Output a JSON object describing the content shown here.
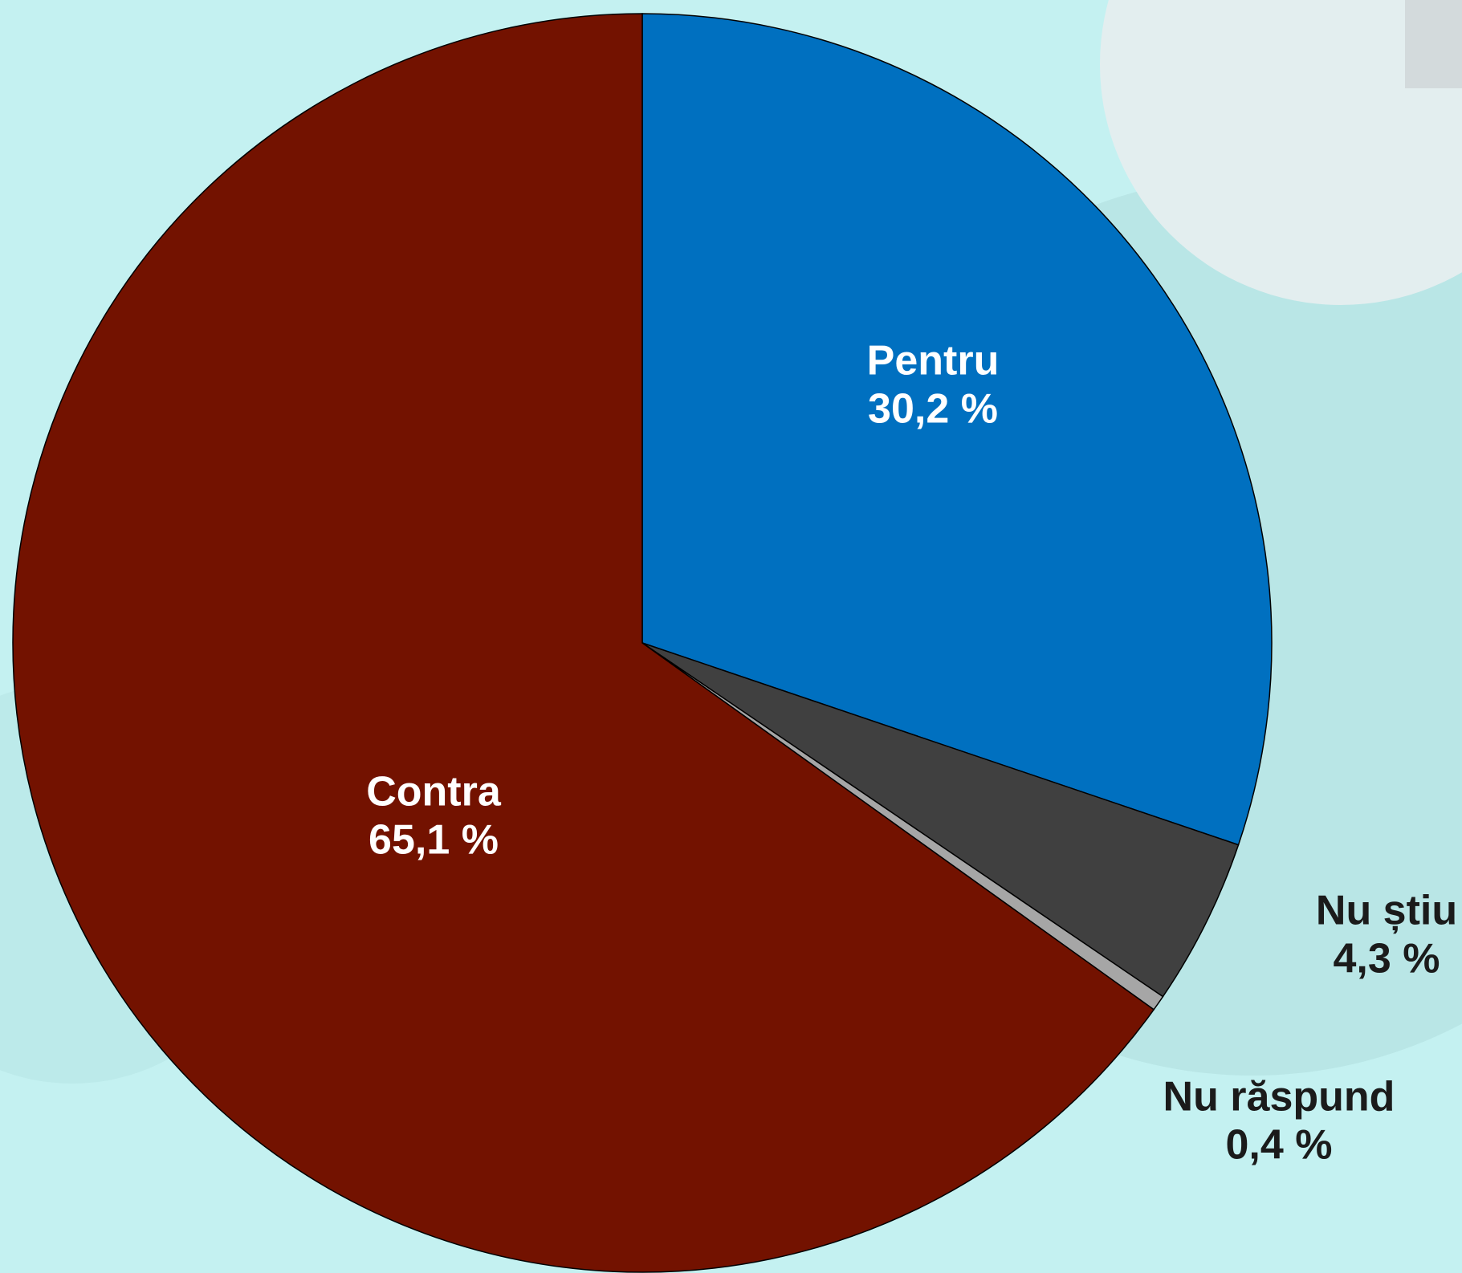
{
  "chart_data": {
    "type": "pie",
    "categories": [
      "Pentru",
      "Nu știu",
      "Nu răspund",
      "Contra"
    ],
    "values": [
      30.2,
      4.3,
      0.4,
      65.1
    ],
    "value_labels": [
      "30,2 %",
      "4,3 %",
      "0,4 %",
      "65,1 %"
    ],
    "colors": [
      "#0070c0",
      "#404040",
      "#a6a6a6",
      "#731200"
    ]
  }
}
